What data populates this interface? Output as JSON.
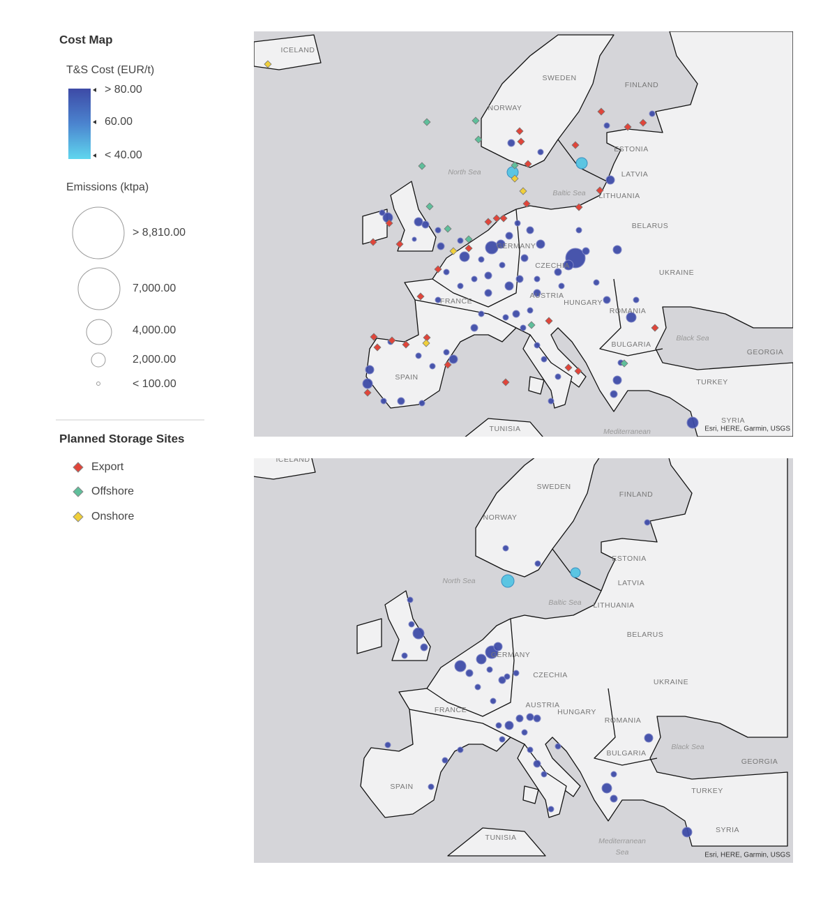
{
  "legend": {
    "title": "Cost Map",
    "cost": {
      "title": "T&S Cost (EUR/t)",
      "labels": [
        "> 80.00",
        "60.00",
        "< 40.00"
      ]
    },
    "emissions": {
      "title": "Emissions (ktpa)",
      "labels": [
        "> 8,810.00",
        "7,000.00",
        "4,000.00",
        "2,000.00",
        "< 100.00"
      ]
    },
    "storage": {
      "title": "Planned Storage Sites",
      "items": [
        "Export",
        "Offshore",
        "Onshore"
      ]
    }
  },
  "maps": [
    {
      "labels": [
        "ICELAND",
        "SWEDEN",
        "FINLAND",
        "NORWAY",
        "North Sea",
        "ESTONIA",
        "LATVIA",
        "Baltic Sea",
        "LITHUANIA",
        "BELARUS",
        "GERMANY",
        "CZECHIA",
        "UKRAINE",
        "FRANCE",
        "AUSTRIA",
        "HUNGARY",
        "ROMANIA",
        "Black Sea",
        "BULGARIA",
        "GEORGIA",
        "SPAIN",
        "TURKEY",
        "SYRIA",
        "TUNISIA",
        "Mediterranean"
      ],
      "attribution": "Esri, HERE, Garmin, USGS"
    },
    {
      "labels": [
        "ICELAND",
        "SWEDEN",
        "FINLAND",
        "NORWAY",
        "North Sea",
        "ESTONIA",
        "LATVIA",
        "Baltic Sea",
        "LITHUANIA",
        "BELARUS",
        "GERMANY",
        "CZECHIA",
        "UKRAINE",
        "FRANCE",
        "AUSTRIA",
        "HUNGARY",
        "ROMANIA",
        "Black Sea",
        "BULGARIA",
        "GEORGIA",
        "SPAIN",
        "TURKEY",
        "SYRIA",
        "TUNISIA",
        "Mediterranean",
        "Sea"
      ],
      "attribution": "Esri, HERE, Garmin, USGS"
    }
  ]
}
